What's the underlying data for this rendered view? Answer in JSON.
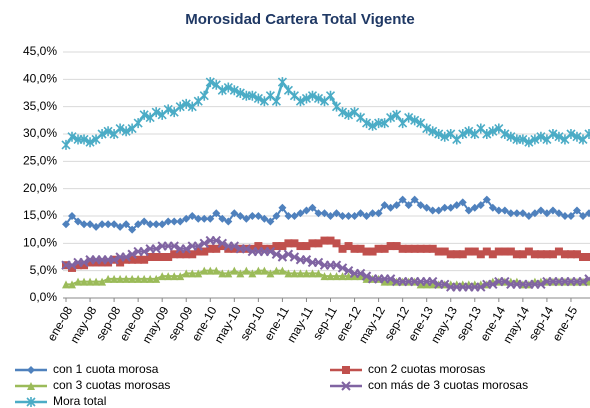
{
  "chart_data": {
    "type": "line",
    "title": "Morosidad Cartera Total Vigente",
    "categories": [
      "ene-08",
      null,
      null,
      null,
      "may-08",
      null,
      null,
      null,
      "sep-08",
      null,
      null,
      null,
      "ene-09",
      null,
      null,
      null,
      "may-09",
      null,
      null,
      null,
      "sep-09",
      null,
      null,
      null,
      "ene-10",
      null,
      null,
      null,
      "may-10",
      null,
      null,
      null,
      "sep-10",
      null,
      null,
      null,
      "ene-11",
      null,
      null,
      null,
      "may-11",
      null,
      null,
      null,
      "sep-11",
      null,
      null,
      null,
      "ene-12",
      null,
      null,
      null,
      "may-12",
      null,
      null,
      null,
      "sep-12",
      null,
      null,
      null,
      "ene-13",
      null,
      null,
      null,
      "may-13",
      null,
      null,
      null,
      "sep-13",
      null,
      null,
      null,
      "ene-14",
      null,
      null,
      null,
      "may-14",
      null,
      null,
      null,
      "sep-14",
      null,
      null,
      null,
      "ene-15",
      null,
      null,
      null
    ],
    "series": [
      {
        "name": "con 1 cuota morosa",
        "color": "#4f81bd",
        "marker": "diamond",
        "values": [
          13.5,
          15,
          14,
          13.5,
          13.5,
          13,
          13.5,
          13.5,
          13.5,
          13,
          13.5,
          12.5,
          13.5,
          14,
          13.5,
          13.5,
          13.5,
          14,
          14,
          14,
          14.5,
          15,
          14.5,
          14.5,
          14.5,
          15.5,
          14.5,
          14,
          15.5,
          15,
          14.5,
          15,
          15,
          14.5,
          14,
          15,
          16.5,
          15,
          15,
          15.5,
          16,
          16.5,
          15.5,
          15.5,
          15,
          15.5,
          15,
          15,
          15,
          15.5,
          15,
          15.5,
          15.5,
          17,
          16.5,
          17,
          18,
          17,
          18,
          17,
          16.5,
          16,
          16,
          16.5,
          16.5,
          17,
          17.5,
          16,
          16.5,
          17,
          18,
          16.5,
          16,
          16,
          15.5,
          15.5,
          15.5,
          15,
          15.5,
          16,
          15.5,
          16,
          15.5,
          15,
          15,
          16,
          15,
          15.5
        ]
      },
      {
        "name": "con 2 cuotas morosas",
        "color": "#c0504d",
        "marker": "square",
        "values": [
          6,
          5.5,
          6,
          6,
          6.5,
          6.5,
          6.5,
          6.5,
          7,
          6.5,
          7,
          7,
          7,
          7,
          7.5,
          7.5,
          7.5,
          7.5,
          8,
          8,
          8,
          8,
          8.5,
          8.5,
          9,
          9,
          9.5,
          9,
          9,
          9,
          9,
          9,
          9.5,
          9,
          9,
          9.5,
          9.5,
          10,
          10,
          9.5,
          9.5,
          10,
          10,
          10.5,
          10.5,
          10,
          9,
          9.5,
          9,
          9,
          8.5,
          8.5,
          9,
          9,
          9.5,
          9.5,
          9,
          9,
          9,
          9,
          9,
          9,
          8.5,
          8.5,
          8,
          8,
          8,
          8.5,
          8.5,
          8,
          8.5,
          8,
          8.5,
          8.5,
          8.5,
          8,
          8,
          8.5,
          8,
          8,
          8,
          8,
          8.5,
          8,
          8,
          8,
          7.5,
          7.5
        ]
      },
      {
        "name": "con 3 cuotas morosas",
        "color": "#9bbb59",
        "marker": "triangle",
        "values": [
          2.5,
          2.5,
          3,
          3,
          3,
          3,
          3,
          3.5,
          3.5,
          3.5,
          3.5,
          3.5,
          3.5,
          3.5,
          3.5,
          3.5,
          4,
          4,
          4,
          4,
          4.5,
          4.5,
          4.5,
          5,
          5,
          5,
          4.5,
          4.5,
          5,
          4.5,
          5,
          4.5,
          5,
          5,
          4.5,
          5,
          5,
          4.5,
          4.5,
          4.5,
          4.5,
          4.5,
          4.5,
          4,
          4,
          4,
          4,
          4,
          4,
          4,
          3.5,
          3.5,
          3.5,
          3,
          3,
          3,
          3,
          3,
          3,
          2.5,
          2.5,
          2.5,
          2.5,
          2.5,
          2.5,
          2.5,
          2.5,
          2.5,
          2.5,
          2.5,
          2.5,
          3,
          3,
          3,
          3,
          3,
          2.5,
          2.5,
          3,
          3,
          3,
          3,
          3,
          3,
          3,
          3,
          3,
          3
        ]
      },
      {
        "name": "con más de 3 cuotas morosas",
        "color": "#8064a2",
        "marker": "x",
        "values": [
          6,
          6,
          6.5,
          6.5,
          7,
          7,
          7,
          7,
          7,
          7.5,
          7.5,
          8,
          8.5,
          8.5,
          9,
          9,
          9.5,
          9.5,
          9.5,
          9,
          9,
          9.5,
          9.5,
          10,
          10.5,
          10.5,
          10,
          9.5,
          9.5,
          9,
          9,
          8.5,
          8.5,
          8.5,
          8.5,
          8,
          7.5,
          8,
          7.5,
          7,
          7,
          6.5,
          6.5,
          6,
          6,
          6,
          5.5,
          5,
          4.5,
          4.5,
          4,
          3.5,
          3.5,
          3.5,
          3.5,
          3,
          3,
          3,
          3,
          3,
          3,
          3,
          2.5,
          2.5,
          2,
          2,
          2,
          2,
          2,
          2,
          2.5,
          2.5,
          3,
          3,
          2.5,
          2.5,
          2.5,
          2.5,
          2.5,
          2.5,
          3,
          3,
          3,
          3,
          3,
          3,
          3,
          3.5
        ]
      },
      {
        "name": "Mora total",
        "color": "#4bacc6",
        "marker": "star",
        "values": [
          28,
          29.5,
          29,
          29,
          28.5,
          29,
          30,
          30.5,
          30,
          31,
          30.5,
          31,
          32,
          33.5,
          33,
          34,
          33.5,
          34.5,
          34,
          35,
          35.5,
          35,
          36,
          37,
          39.5,
          39,
          38,
          38.5,
          38,
          37.5,
          37,
          37,
          36.5,
          36,
          37,
          36,
          39.5,
          38,
          37,
          36,
          36.5,
          37,
          36.5,
          36,
          37,
          35,
          34,
          33.5,
          34,
          33,
          32,
          31.5,
          32,
          32,
          33,
          33.5,
          32,
          33,
          32.5,
          32,
          31,
          30.5,
          30,
          29.5,
          30,
          29,
          30,
          30.5,
          30,
          31,
          30,
          30.5,
          31,
          30,
          29.5,
          29,
          29,
          28.5,
          29,
          29.5,
          29,
          30,
          29.5,
          29,
          30,
          29.5,
          29,
          30
        ]
      }
    ],
    "ylim": [
      0,
      45
    ],
    "yticks": [
      {
        "value": 0,
        "label": "0,0%"
      },
      {
        "value": 5,
        "label": "5,0%"
      },
      {
        "value": 10,
        "label": "10,0%"
      },
      {
        "value": 15,
        "label": "15,0%"
      },
      {
        "value": 20,
        "label": "20,0%"
      },
      {
        "value": 25,
        "label": "25,0%"
      },
      {
        "value": 30,
        "label": "30,0%"
      },
      {
        "value": 35,
        "label": "35,0%"
      },
      {
        "value": 40,
        "label": "40,0%"
      },
      {
        "value": 45,
        "label": "45,0%"
      }
    ],
    "grid": true
  }
}
